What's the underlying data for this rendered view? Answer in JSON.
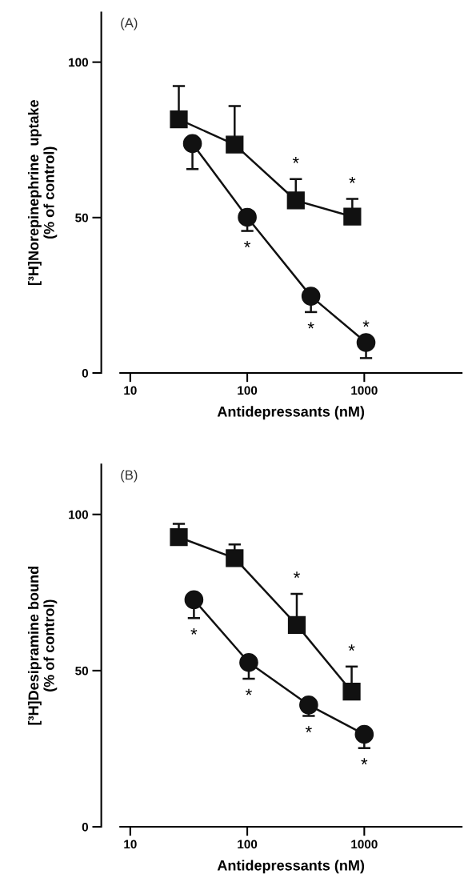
{
  "chart_data": [
    {
      "type": "line",
      "title": "(A)",
      "xlabel": "Antidepressants (nM)",
      "ylabel": "[³H]Norepinephrine  uptake\n(% of control)",
      "log": "x",
      "xlim": [
        8.2,
        6800
      ],
      "xticks": [
        10,
        100,
        1000
      ],
      "ylim": [
        0,
        116
      ],
      "yticks": [
        0,
        50,
        100
      ],
      "grid": false,
      "legend": false,
      "line_style": "solid",
      "series": [
        {
          "color": "#111111",
          "marker": "square",
          "x": [
            26,
            78,
            260,
            790
          ],
          "values": [
            81.6,
            73.5,
            55.5,
            50.3
          ],
          "errors": [
            [
              81.6,
              92.3
            ],
            [
              73.5,
              85.9
            ],
            [
              55.5,
              62.4
            ],
            [
              50.3,
              56.0
            ]
          ]
        },
        {
          "color": "#111111",
          "marker": "circle",
          "x": [
            34,
            100,
            350,
            1035
          ],
          "values": [
            73.8,
            50.1,
            24.7,
            9.8
          ],
          "errors": [
            [
              65.6,
              73.8
            ],
            [
              45.7,
              50.1
            ],
            [
              19.6,
              24.7
            ],
            [
              4.8,
              9.8
            ]
          ]
        }
      ],
      "annotations": [
        {
          "text": "*",
          "x": 260,
          "y": 55.5
        },
        {
          "text": "*",
          "x": 790,
          "y": 50.3
        },
        {
          "text": "*",
          "x": 100,
          "y": 45.7
        },
        {
          "text": "*",
          "x": 350,
          "y": 19.6
        },
        {
          "text": "*",
          "x": 1035,
          "y": 9.8
        }
      ]
    },
    {
      "type": "line",
      "title": "(B)",
      "xlabel": "Antidepressants (nM)",
      "ylabel": "[³H]Desipramine bound\n(% of control)",
      "log": "x",
      "xlim": [
        8.2,
        6800
      ],
      "xticks": [
        10,
        100,
        1000
      ],
      "ylim": [
        0,
        116
      ],
      "yticks": [
        0,
        50,
        100
      ],
      "grid": false,
      "legend": false,
      "line_style": "solid",
      "series": [
        {
          "color": "#111111",
          "marker": "square",
          "x": [
            26,
            78,
            265,
            780
          ],
          "values": [
            92.7,
            86.0,
            64.6,
            43.3
          ],
          "errors": [
            [
              92.7,
              97.0
            ],
            [
              86.0,
              90.4
            ],
            [
              64.6,
              74.6
            ],
            [
              43.3,
              51.3
            ]
          ]
        },
        {
          "color": "#111111",
          "marker": "circle",
          "x": [
            35,
            103,
            335,
            1000
          ],
          "values": [
            72.7,
            52.6,
            39.0,
            29.6
          ],
          "errors": [
            [
              66.8,
              72.7
            ],
            [
              47.4,
              52.6
            ],
            [
              35.5,
              39.0
            ],
            [
              25.2,
              29.6
            ]
          ]
        }
      ],
      "annotations": [
        {
          "text": "*",
          "x": 265,
          "y": 64.6
        },
        {
          "text": "*",
          "x": 780,
          "y": 43.3
        },
        {
          "text": "*",
          "x": 35,
          "y": 66.8
        },
        {
          "text": "*",
          "x": 103,
          "y": 47.4
        },
        {
          "text": "*",
          "x": 335,
          "y": 35.5
        },
        {
          "text": "*",
          "x": 1000,
          "y": 25.2
        }
      ]
    }
  ]
}
